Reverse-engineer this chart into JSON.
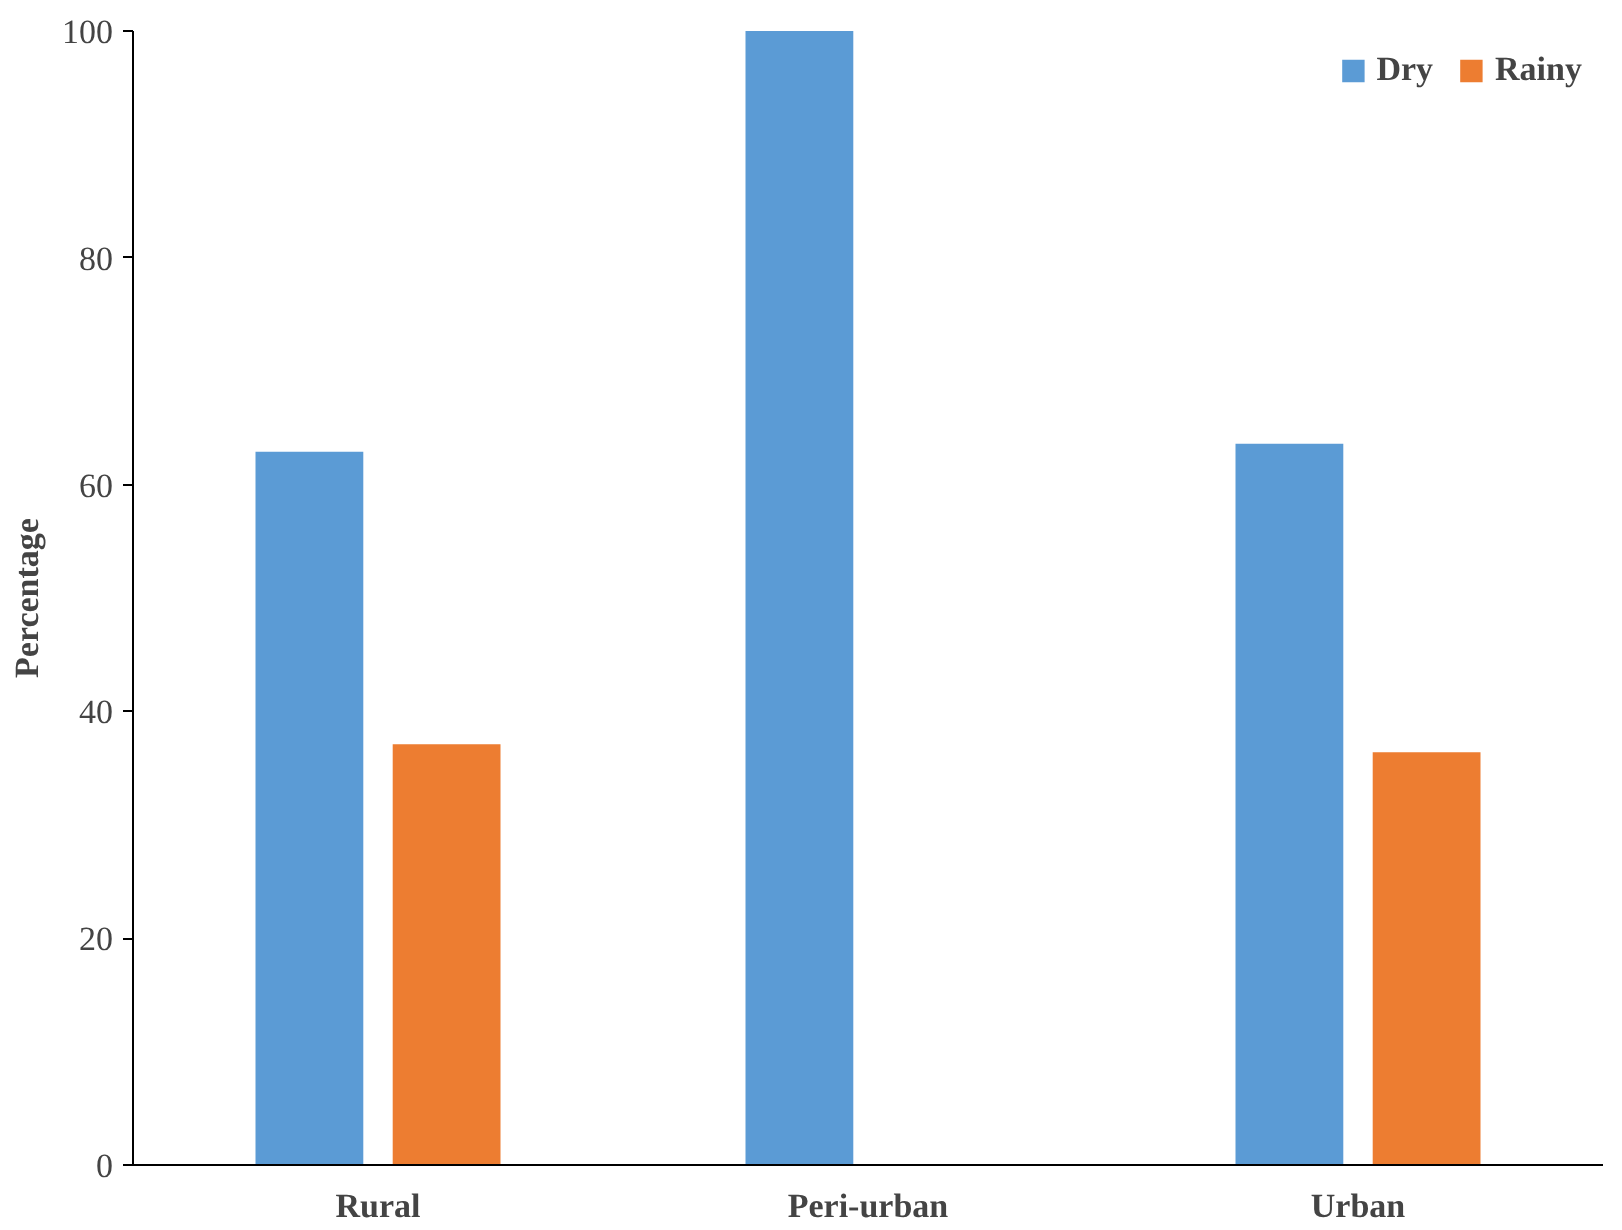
{
  "chart_data": {
    "type": "bar",
    "categories": [
      "Rural",
      "Peri-urban",
      "Urban"
    ],
    "ylabel": "Percentage",
    "series": [
      {
        "name": "Dry",
        "color": "#5b9bd5",
        "values": [
          62.9,
          100,
          63.6
        ]
      },
      {
        "name": "Rainy",
        "color": "#ed7d31",
        "values": [
          37.1,
          0,
          36.4
        ]
      }
    ],
    "ylim": [
      0,
      100
    ],
    "yticks": [
      0,
      20,
      40,
      60,
      80,
      100
    ],
    "grid": false,
    "legend": "top right"
  }
}
